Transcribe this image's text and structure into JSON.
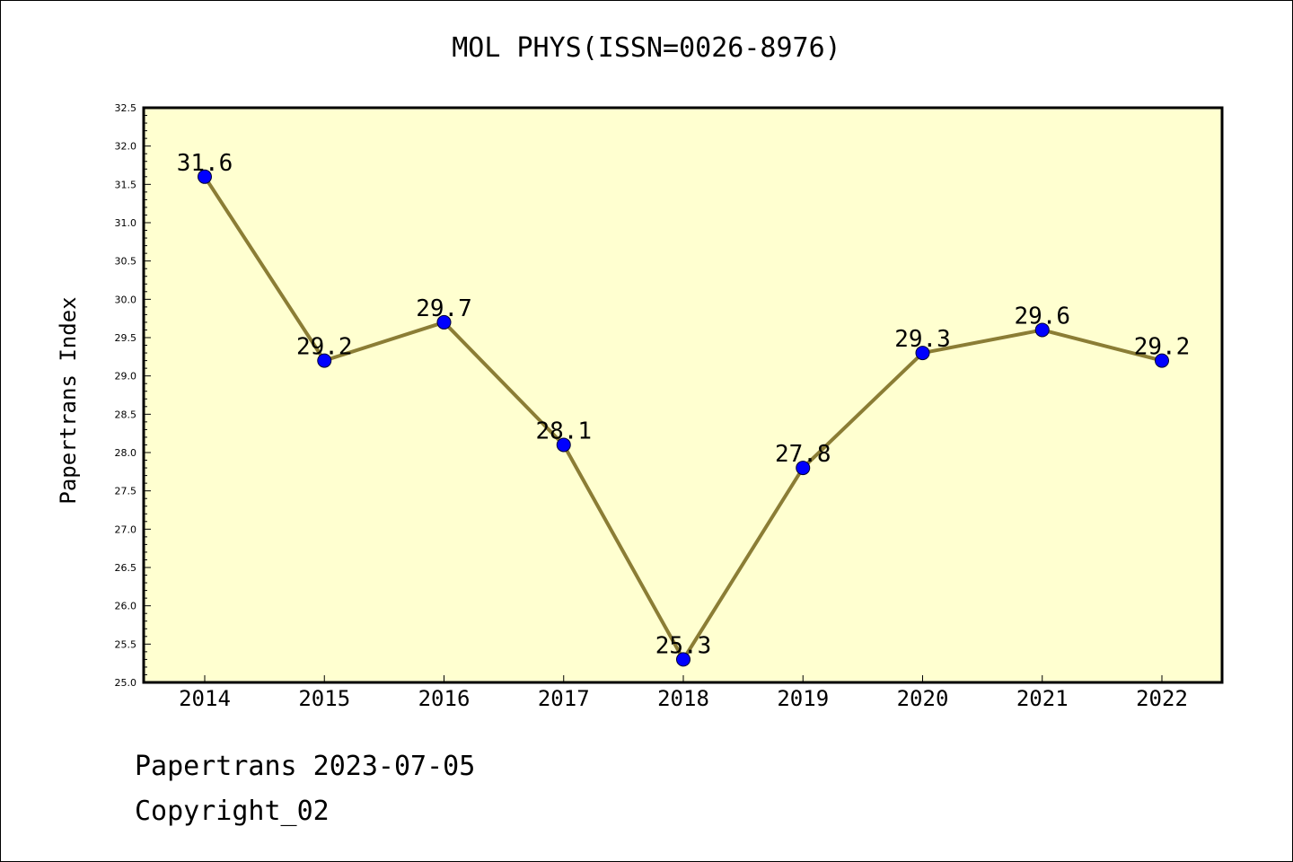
{
  "chart_data": {
    "type": "line",
    "title": "MOL PHYS(ISSN=0026-8976)",
    "xlabel": "",
    "ylabel": "Papertrans Index",
    "categories": [
      "2014",
      "2015",
      "2016",
      "2017",
      "2018",
      "2019",
      "2020",
      "2021",
      "2022"
    ],
    "series": [
      {
        "values": [
          31.6,
          29.2,
          29.7,
          28.1,
          25.3,
          27.8,
          29.3,
          29.6,
          29.2
        ]
      }
    ],
    "data_labels": [
      "31.6",
      "29.2",
      "29.7",
      "28.1",
      "25.3",
      "27.8",
      "29.3",
      "29.6",
      "29.2"
    ],
    "ylim": [
      25.0,
      32.5
    ],
    "y_ticks": [
      "25.0",
      "25.5",
      "26.0",
      "26.5",
      "27.0",
      "27.5",
      "28.0",
      "28.5",
      "29.0",
      "29.5",
      "30.0",
      "30.5",
      "31.0",
      "31.5",
      "32.0",
      "32.5"
    ],
    "grid": false,
    "colors": {
      "plot_background": "#ffffd0",
      "line": "#8b7d35",
      "marker": "#0000ff",
      "axes": "#000000"
    }
  },
  "footer": {
    "line1": "Papertrans 2023-07-05",
    "line2": "Copyright_02"
  }
}
